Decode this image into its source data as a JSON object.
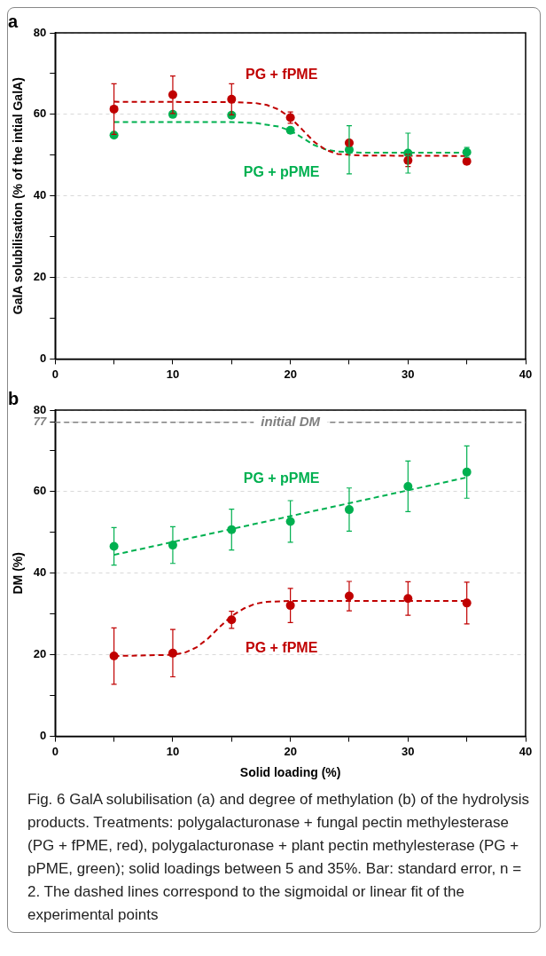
{
  "chart_data": [
    {
      "type": "scatter",
      "title": "a",
      "ylabel": "GalA solubilisation (% of the intial GalA)",
      "x": [
        5,
        10,
        15,
        20,
        25,
        30,
        35
      ],
      "xlim": [
        0,
        40
      ],
      "xticks": [
        0,
        {
          "value": 5,
          "label": null
        },
        10,
        {
          "value": 15,
          "label": null
        },
        20,
        {
          "value": 25,
          "label": null
        },
        30,
        {
          "value": 35,
          "label": null
        },
        40
      ],
      "ylim": [
        0,
        80
      ],
      "yticks": [
        0,
        {
          "value": 10,
          "label": null
        },
        20,
        {
          "value": 30,
          "label": null
        },
        40,
        {
          "value": 50,
          "label": null
        },
        60,
        {
          "value": 70,
          "label": null
        },
        80
      ],
      "grid": "y",
      "legend": false,
      "marker": "circle",
      "series": [
        {
          "name": "PG + fPME",
          "color": "#c00000",
          "values": [
            61.3,
            64.8,
            63.7,
            59.2,
            53.0,
            48.7,
            48.5
          ],
          "errors": [
            6.2,
            4.6,
            3.8,
            1.4,
            null,
            1.5,
            null
          ]
        },
        {
          "name": "PG + pPME",
          "color": "#00b050",
          "values": [
            54.9,
            60.0,
            59.8,
            56.1,
            51.3,
            50.5,
            50.7
          ],
          "errors": [
            null,
            null,
            null,
            null,
            5.9,
            4.9,
            1.2
          ]
        },
        {
          "type": "line",
          "color": "#c00000",
          "marker": "none",
          "line_style": "dashed",
          "x": [
            5,
            15,
            17,
            18,
            19,
            20,
            21,
            22,
            23,
            24,
            26,
            35
          ],
          "values": [
            63.1,
            63.0,
            62.8,
            62.3,
            61.2,
            59.2,
            56.3,
            53.3,
            51.3,
            50.3,
            49.9,
            49.8
          ]
        },
        {
          "type": "line",
          "color": "#00b050",
          "marker": "none",
          "line_style": "dashed",
          "x": [
            5,
            15,
            17,
            19,
            20,
            21,
            22,
            23,
            24,
            26,
            35
          ],
          "values": [
            58.1,
            58.1,
            57.9,
            57.0,
            56.0,
            54.3,
            52.5,
            51.4,
            50.9,
            50.6,
            50.6
          ]
        }
      ]
    },
    {
      "type": "scatter",
      "title": "b",
      "xlabel": "Solid loading (%)",
      "ylabel": "DM (%)",
      "x": [
        5,
        10,
        15,
        20,
        25,
        30,
        35
      ],
      "xlim": [
        0,
        40
      ],
      "xticks": [
        0,
        {
          "value": 5,
          "label": null
        },
        10,
        {
          "value": 15,
          "label": null
        },
        20,
        {
          "value": 25,
          "label": null
        },
        30,
        {
          "value": 35,
          "label": null
        },
        40
      ],
      "ylim": [
        0,
        80
      ],
      "yticks": [
        0,
        {
          "value": 10,
          "label": null
        },
        20,
        {
          "value": 30,
          "label": null
        },
        40,
        {
          "value": 50,
          "label": null
        },
        60,
        {
          "value": 70,
          "label": null
        },
        {
          "value": 77,
          "label": "77"
        },
        80
      ],
      "grid": "y",
      "legend": false,
      "marker": "circle",
      "ref_lines": [
        {
          "axis": "y",
          "value": 77,
          "label": "initial DM",
          "color": "#808080",
          "line_style": "dashed"
        }
      ],
      "series": [
        {
          "name": "PG + pPME",
          "color": "#00b050",
          "values": [
            46.6,
            46.9,
            50.7,
            52.7,
            55.6,
            61.3,
            64.8
          ],
          "errors": [
            4.6,
            4.5,
            5.0,
            5.1,
            5.3,
            6.2,
            6.4
          ]
        },
        {
          "name": "PG + fPME",
          "color": "#c00000",
          "values": [
            19.7,
            20.4,
            28.6,
            32.1,
            34.4,
            33.8,
            32.7
          ],
          "errors": [
            6.9,
            5.8,
            2.1,
            4.2,
            3.6,
            4.1,
            5.1
          ]
        },
        {
          "type": "line",
          "color": "#00b050",
          "marker": "none",
          "line_style": "dashed",
          "x": [
            5,
            35
          ],
          "values": [
            44.5,
            63.5
          ]
        },
        {
          "type": "line",
          "color": "#c00000",
          "marker": "none",
          "line_style": "dashed",
          "x": [
            5,
            10,
            11,
            12,
            13,
            14,
            15,
            16,
            17,
            18,
            20,
            35
          ],
          "values": [
            19.7,
            20.0,
            20.5,
            21.8,
            24.0,
            26.9,
            29.5,
            31.3,
            32.5,
            33.0,
            33.2,
            33.2
          ]
        }
      ],
      "annotations": [
        "Fig. 6  GalA solubilisation (a) and degree of methylation (b) of the hydrolysis products. Treatments: polygalacturonase + fungal pectin methylesterase (PG + fPME, red), polygalacturonase + plant pectin methylesterase (PG + pPME, green); solid loadings between 5 and 35%. Bar: standard error, n = 2. The dashed lines correspond to the sigmoidal or linear fit of the experimental points"
      ]
    }
  ]
}
